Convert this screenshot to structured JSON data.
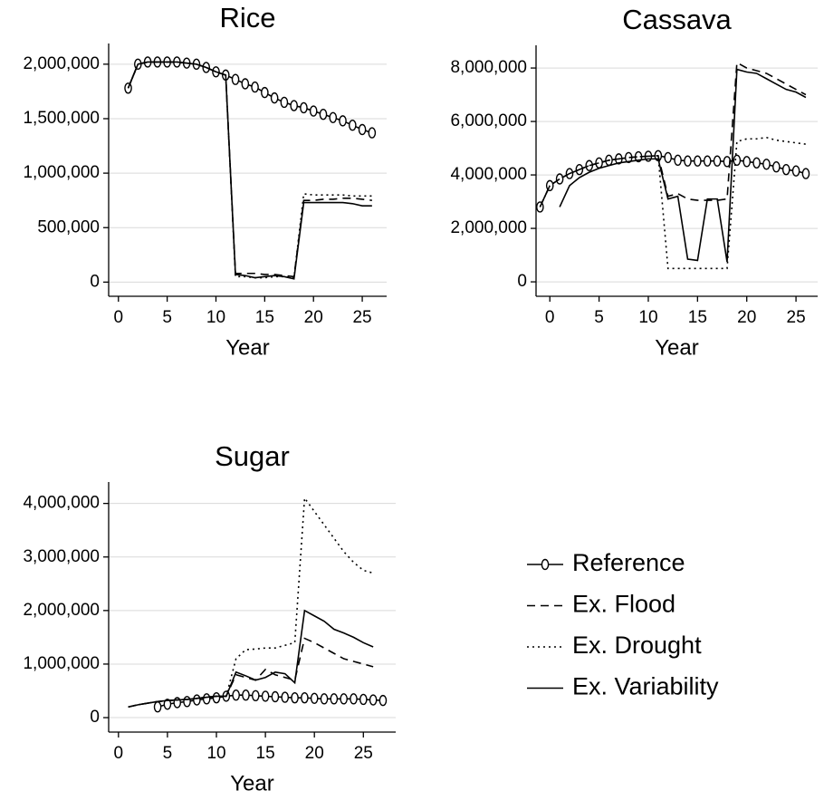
{
  "chart_data": [
    {
      "type": "line",
      "title": "Rice",
      "xlabel": "Year",
      "x": [
        1,
        2,
        3,
        4,
        5,
        6,
        7,
        8,
        9,
        10,
        11,
        12,
        13,
        14,
        15,
        16,
        17,
        18,
        19,
        20,
        21,
        22,
        23,
        24,
        25,
        26
      ],
      "xlim": [
        -1,
        27.5
      ],
      "xticks": [
        0,
        5,
        10,
        15,
        20,
        25
      ],
      "ylim": [
        -130000,
        2190000
      ],
      "yticks": [
        0,
        {
          "value": 500000,
          "label": "500,000"
        },
        {
          "value": 1000000,
          "label": "1,000,000"
        },
        {
          "value": 1500000,
          "label": "1,500,000"
        },
        {
          "value": 2000000,
          "label": "2,000,000"
        }
      ],
      "grid": true,
      "series": [
        {
          "name": "Reference",
          "color": "#000000",
          "style": "solid",
          "marker": "circle",
          "values": [
            1780000,
            2000000,
            2020000,
            2020000,
            2020000,
            2020000,
            2010000,
            2000000,
            1970000,
            1930000,
            1900000,
            1860000,
            1820000,
            1790000,
            1740000,
            1690000,
            1650000,
            1620000,
            1600000,
            1570000,
            1540000,
            1510000,
            1480000,
            1440000,
            1400000,
            1370000
          ]
        },
        {
          "name": "Ex. Flood",
          "color": "#000000",
          "style": "dashed",
          "values": [
            1780000,
            2000000,
            2020000,
            2020000,
            2020000,
            2020000,
            2010000,
            2000000,
            1970000,
            1930000,
            1900000,
            80000,
            80000,
            80000,
            70000,
            70000,
            60000,
            50000,
            750000,
            750000,
            760000,
            760000,
            770000,
            770000,
            760000,
            750000
          ]
        },
        {
          "name": "Ex. Drought",
          "color": "#000000",
          "style": "dotted",
          "values": [
            1780000,
            2000000,
            2020000,
            2020000,
            2020000,
            2020000,
            2010000,
            2000000,
            1970000,
            1930000,
            1900000,
            50000,
            50000,
            40000,
            40000,
            50000,
            50000,
            40000,
            810000,
            800000,
            800000,
            800000,
            800000,
            790000,
            790000,
            790000
          ]
        },
        {
          "name": "Ex. Variability",
          "color": "#000000",
          "style": "solid",
          "values": [
            1780000,
            2000000,
            2020000,
            2020000,
            2020000,
            2020000,
            2010000,
            2000000,
            1970000,
            1930000,
            1900000,
            70000,
            60000,
            40000,
            50000,
            60000,
            50000,
            30000,
            730000,
            730000,
            730000,
            730000,
            730000,
            720000,
            700000,
            700000
          ]
        }
      ]
    },
    {
      "type": "line",
      "title": "Cassava",
      "xlabel": "Year",
      "x": [
        -1,
        0,
        1,
        2,
        3,
        4,
        5,
        6,
        7,
        8,
        9,
        10,
        11,
        12,
        13,
        14,
        15,
        16,
        17,
        18,
        19,
        20,
        21,
        22,
        23,
        24,
        25,
        26
      ],
      "xlim": [
        -1.4,
        27.2
      ],
      "xticks": [
        0,
        5,
        10,
        15,
        20,
        25
      ],
      "ylim": [
        -540000,
        8850000
      ],
      "yticks": [
        0,
        {
          "value": 2000000,
          "label": "2,000,000"
        },
        {
          "value": 4000000,
          "label": "4,000,000"
        },
        {
          "value": 6000000,
          "label": "6,000,000"
        },
        {
          "value": 8000000,
          "label": "8,000,000"
        }
      ],
      "grid": true,
      "series": [
        {
          "name": "Reference",
          "color": "#000000",
          "style": "solid",
          "marker": "circle",
          "values": [
            2800000,
            3600000,
            3850000,
            4050000,
            4200000,
            4350000,
            4450000,
            4550000,
            4600000,
            4650000,
            4680000,
            4700000,
            4720000,
            4650000,
            4550000,
            4520000,
            4520000,
            4520000,
            4520000,
            4500000,
            4550000,
            4500000,
            4450000,
            4400000,
            4300000,
            4200000,
            4150000,
            4050000
          ]
        },
        {
          "name": "Ex. Flood",
          "color": "#000000",
          "style": "dashed",
          "values": [
            2800000,
            3600000,
            3850000,
            4050000,
            4200000,
            4350000,
            4450000,
            4550000,
            4600000,
            4650000,
            4680000,
            4700000,
            4720000,
            3200000,
            3300000,
            3100000,
            3050000,
            3050000,
            3050000,
            3100000,
            8200000,
            8000000,
            7900000,
            7800000,
            7600000,
            7400000,
            7200000,
            7000000
          ]
        },
        {
          "name": "Ex. Drought",
          "color": "#000000",
          "style": "dotted",
          "values": [
            2800000,
            3600000,
            3850000,
            4050000,
            4200000,
            4350000,
            4450000,
            4550000,
            4600000,
            4650000,
            4680000,
            4700000,
            4720000,
            500000,
            500000,
            500000,
            500000,
            500000,
            500000,
            500000,
            5250000,
            5350000,
            5350000,
            5400000,
            5300000,
            5250000,
            5200000,
            5150000
          ]
        },
        {
          "name": "Ex. Variability",
          "color": "#000000",
          "style": "solid",
          "values": [
            null,
            null,
            2800000,
            3600000,
            3900000,
            4100000,
            4250000,
            4350000,
            4450000,
            4500000,
            4550000,
            4600000,
            4600000,
            3100000,
            3200000,
            850000,
            800000,
            3100000,
            3100000,
            750000,
            7950000,
            7850000,
            7800000,
            7600000,
            7400000,
            7200000,
            7100000,
            6900000
          ]
        }
      ]
    },
    {
      "type": "line",
      "title": "Sugar",
      "xlabel": "Year",
      "x": [
        1,
        2,
        3,
        4,
        5,
        6,
        7,
        8,
        9,
        10,
        11,
        12,
        13,
        14,
        15,
        16,
        17,
        18,
        19,
        20,
        21,
        22,
        23,
        24,
        25,
        26,
        27
      ],
      "xlim": [
        -1,
        28.3
      ],
      "xticks": [
        0,
        5,
        10,
        15,
        20,
        25
      ],
      "ylim": [
        -270000,
        4400000
      ],
      "yticks": [
        0,
        {
          "value": 1000000,
          "label": "1,000,000"
        },
        {
          "value": 2000000,
          "label": "2,000,000"
        },
        {
          "value": 3000000,
          "label": "3,000,000"
        },
        {
          "value": 4000000,
          "label": "4,000,000"
        }
      ],
      "grid": true,
      "legend": "outside right",
      "series": [
        {
          "name": "Reference",
          "color": "#000000",
          "style": "solid",
          "marker": "circle",
          "values": [
            null,
            null,
            null,
            200000,
            250000,
            280000,
            300000,
            330000,
            350000,
            370000,
            400000,
            420000,
            420000,
            410000,
            400000,
            390000,
            380000,
            370000,
            370000,
            360000,
            350000,
            350000,
            350000,
            350000,
            340000,
            330000,
            320000
          ]
        },
        {
          "name": "Ex. Flood",
          "color": "#000000",
          "style": "dashed",
          "values": [
            200000,
            240000,
            270000,
            300000,
            320000,
            330000,
            340000,
            360000,
            380000,
            400000,
            400000,
            800000,
            750000,
            700000,
            900000,
            800000,
            750000,
            700000,
            1480000,
            1400000,
            1300000,
            1200000,
            1100000,
            1050000,
            1000000,
            950000,
            null
          ]
        },
        {
          "name": "Ex. Drought",
          "color": "#000000",
          "style": "dotted",
          "values": [
            200000,
            240000,
            270000,
            300000,
            320000,
            330000,
            340000,
            360000,
            380000,
            400000,
            400000,
            1100000,
            1270000,
            1280000,
            1300000,
            1300000,
            1350000,
            1400000,
            4100000,
            3850000,
            3600000,
            3350000,
            3100000,
            2900000,
            2750000,
            2700000,
            null
          ]
        },
        {
          "name": "Ex. Variability",
          "color": "#000000",
          "style": "solid",
          "values": [
            200000,
            240000,
            270000,
            300000,
            320000,
            330000,
            340000,
            360000,
            380000,
            400000,
            400000,
            850000,
            780000,
            700000,
            750000,
            850000,
            820000,
            650000,
            2000000,
            1900000,
            1800000,
            1650000,
            1580000,
            1500000,
            1400000,
            1320000,
            null
          ]
        }
      ]
    }
  ]
}
